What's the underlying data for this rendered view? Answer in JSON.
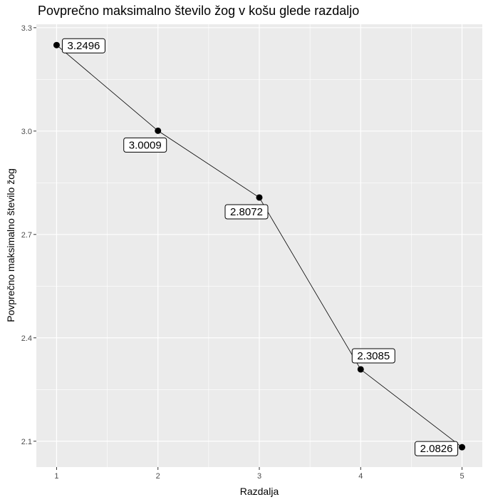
{
  "chart_data": {
    "type": "line",
    "title": "Povprečno maksimalno število žog v košu glede razdaljo",
    "xlabel": "Razdalja",
    "ylabel": "Povprečno maksimalno število žog",
    "x": [
      1,
      2,
      3,
      4,
      5
    ],
    "values": [
      3.2496,
      3.0009,
      2.8072,
      2.3085,
      2.0826
    ],
    "labels": [
      "3.2496",
      "3.0009",
      "2.8072",
      "2.3085",
      "2.0826"
    ],
    "label_placement": [
      "right",
      "below-left",
      "below-left",
      "above-right",
      "below-left"
    ],
    "x_ticks": [
      "1",
      "2",
      "3",
      "4",
      "5"
    ],
    "y_ticks": [
      "2.1",
      "2.4",
      "2.7",
      "3.0",
      "3.3"
    ],
    "xlim": [
      0.8,
      5.2
    ],
    "ylim": [
      2.025,
      3.31
    ],
    "grid": true,
    "legend": "none",
    "colors": {
      "panel": "#ebebeb",
      "grid": "#ffffff",
      "line": "#000000",
      "point": "#000000"
    }
  }
}
